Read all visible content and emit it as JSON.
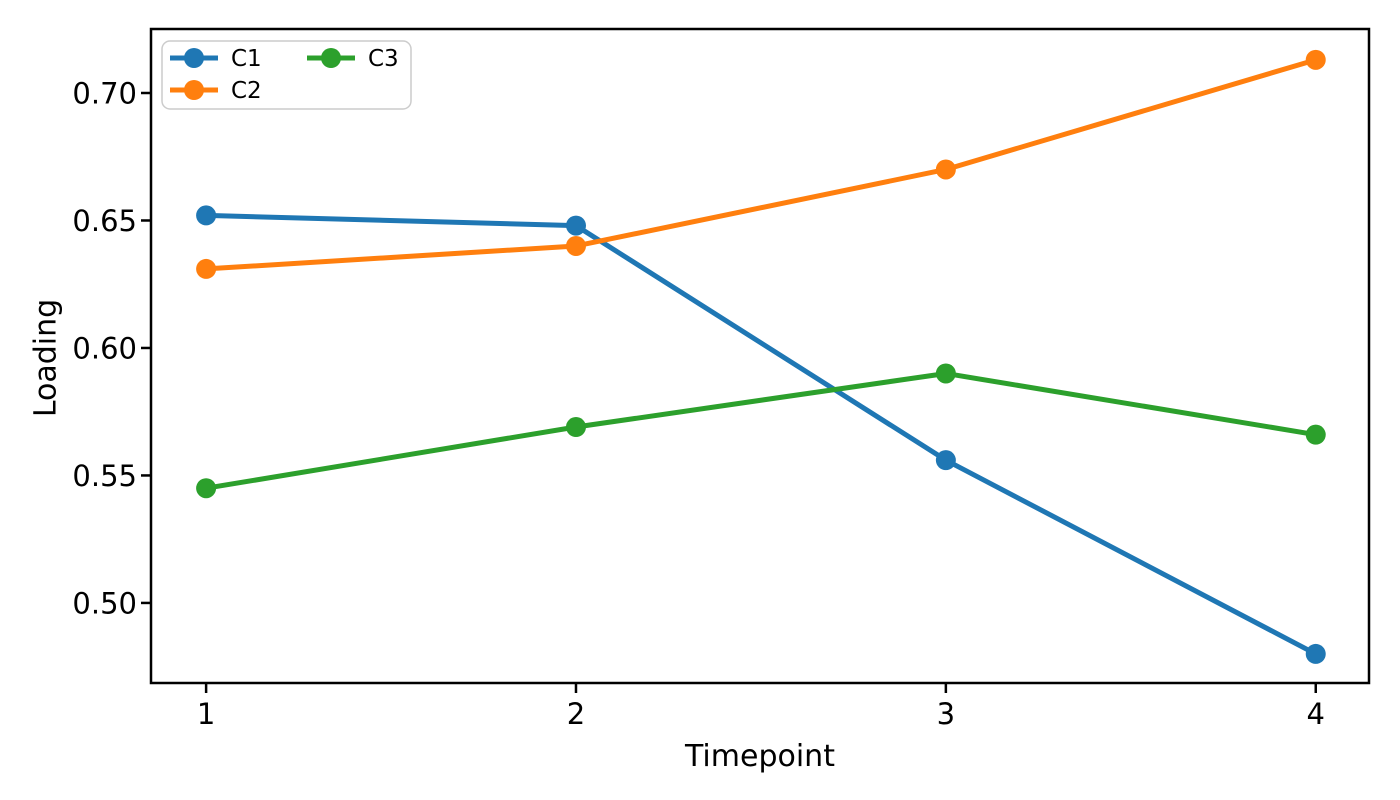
{
  "figure": {
    "background_color": "#ffffff",
    "xlabel": "Timepoint",
    "ylabel": "Loading"
  },
  "chart_data": {
    "type": "line",
    "title": "",
    "xlabel": "Timepoint",
    "ylabel": "Loading",
    "x": [
      1,
      2,
      3,
      4
    ],
    "series": [
      {
        "name": "C1",
        "color": "#1f77b4",
        "values": [
          0.652,
          0.648,
          0.556,
          0.48
        ]
      },
      {
        "name": "C2",
        "color": "#ff7f0e",
        "values": [
          0.631,
          0.64,
          0.67,
          0.713
        ]
      },
      {
        "name": "C3",
        "color": "#2ca02c",
        "values": [
          0.545,
          0.569,
          0.59,
          0.566
        ]
      }
    ],
    "xlim": [
      0.851,
      4.144
    ],
    "ylim": [
      0.4686,
      0.7251
    ],
    "xticks": [
      1,
      2,
      3,
      4
    ],
    "xtick_labels": [
      "1",
      "2",
      "3",
      "4"
    ],
    "yticks": [
      0.5,
      0.55,
      0.6,
      0.65,
      0.7
    ],
    "ytick_labels": [
      "0.50",
      "0.55",
      "0.60",
      "0.65",
      "0.70"
    ],
    "grid": false,
    "marker": "circle",
    "legend": {
      "position": "upper-left",
      "ncol": 2,
      "entries": [
        "C1",
        "C2",
        "C3"
      ],
      "border_color": "#cccccc",
      "background_color": "#ffffff"
    },
    "spine_color": "#000000",
    "text_color": "#000000"
  }
}
